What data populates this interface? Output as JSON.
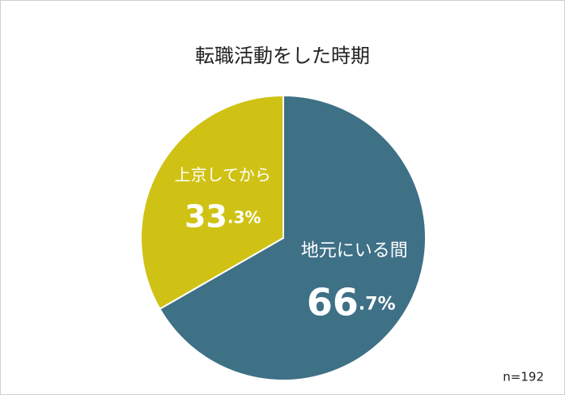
{
  "chart_data": {
    "type": "pie",
    "title": "転職活動をした時期",
    "categories": [
      "地元にいる間",
      "上京してから"
    ],
    "values": [
      66.7,
      33.3
    ],
    "value_labels": [
      "66.7%",
      "33.3%"
    ],
    "colors": [
      "#3e7086",
      "#cfc214"
    ],
    "note": "n=192"
  }
}
